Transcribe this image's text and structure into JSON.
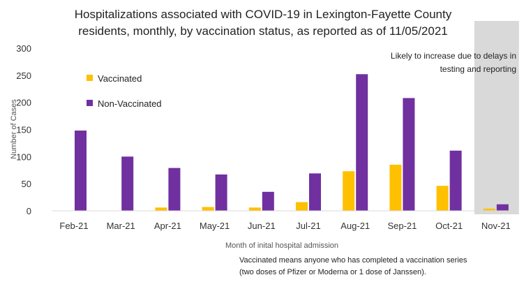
{
  "chart_data": {
    "type": "bar",
    "title": [
      "Hospitalizations associated with COVID-19 in Lexington-Fayette County",
      "residents, monthly, by vaccination status, as reported as of  11/05/2021"
    ],
    "xlabel": "Month of inital hospital admission",
    "ylabel": "Number of Cases",
    "ylim": [
      0,
      300
    ],
    "yticks": [
      "0",
      "50",
      "100",
      "150",
      "200",
      "250",
      "300"
    ],
    "categories": [
      "Feb-21",
      "Mar-21",
      "Apr-21",
      "May-21",
      "Jun-21",
      "Jul-21",
      "Aug-21",
      "Sep-21",
      "Oct-21",
      "Nov-21"
    ],
    "series": [
      {
        "name": "Vaccinated",
        "color": "#FFC000",
        "values": [
          0,
          0,
          6,
          7,
          6,
          16,
          73,
          85,
          46,
          4
        ]
      },
      {
        "name": "Non-Vaccinated",
        "color": "#7030A0",
        "values": [
          148,
          100,
          79,
          67,
          35,
          69,
          252,
          208,
          111,
          12
        ]
      }
    ],
    "legend_position": "top-left",
    "grid": false,
    "highlight": {
      "category": "Nov-21",
      "color": "#D9D9D9"
    },
    "annotation": [
      "Likely to increase due to delays in",
      "testing and reporting"
    ],
    "footnote": [
      "Vaccinated means anyone who has completed a vaccination series",
      "(two doses of Pfizer or Moderna or 1 dose of Janssen)."
    ]
  }
}
